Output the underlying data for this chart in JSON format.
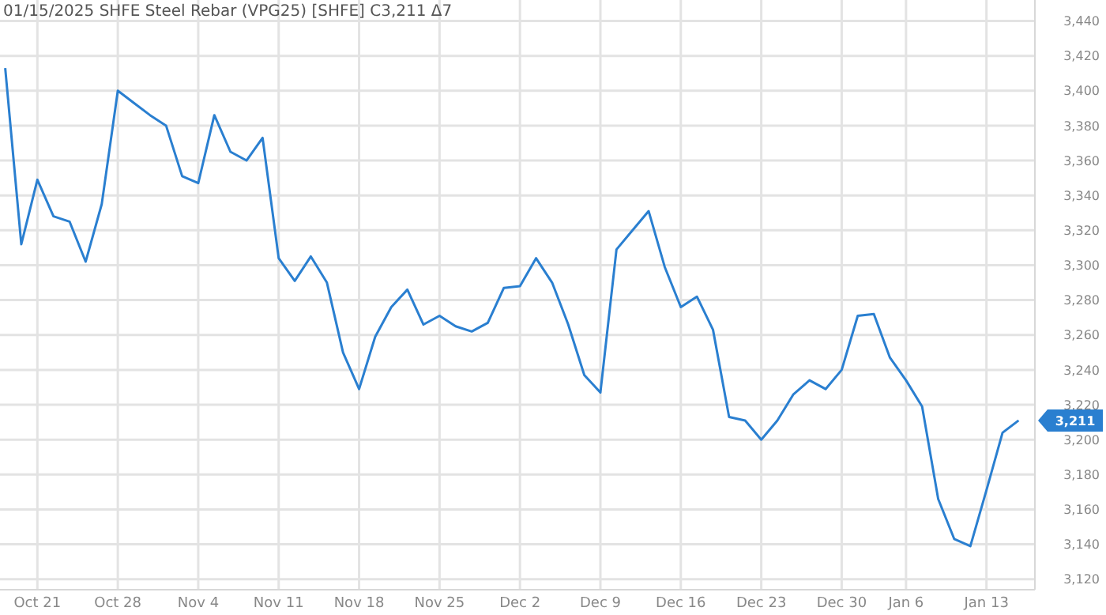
{
  "chart_data": {
    "type": "line",
    "title": "01/15/2025 SHFE Steel Rebar (VPG25) [SHFE] C3,211 Δ7",
    "categories": [
      null,
      null,
      "Oct 21",
      null,
      null,
      null,
      null,
      "Oct 28",
      null,
      null,
      null,
      null,
      "Nov 4",
      null,
      null,
      null,
      null,
      "Nov 11",
      null,
      null,
      null,
      null,
      "Nov 18",
      null,
      null,
      null,
      null,
      "Nov 25",
      null,
      null,
      null,
      null,
      "Dec 2",
      null,
      null,
      null,
      null,
      "Dec 9",
      null,
      null,
      null,
      null,
      "Dec 16",
      null,
      null,
      null,
      null,
      "Dec 23",
      null,
      null,
      null,
      null,
      "Dec 30",
      null,
      null,
      null,
      "Jan 6",
      null,
      null,
      null,
      null,
      "Jan 13",
      null,
      null
    ],
    "series": [
      {
        "color": "#2a7fd0",
        "values": [
          3413,
          3312,
          3349,
          3328,
          3325,
          3302,
          3335,
          3400,
          3393,
          3386,
          3380,
          3351,
          3347,
          3386,
          3365,
          3360,
          3373,
          3304,
          3291,
          3305,
          3290,
          3250,
          3229,
          3259,
          3276,
          3286,
          3266,
          3271,
          3265,
          3262,
          3267,
          3287,
          3288,
          3304,
          3290,
          3266,
          3237,
          3227,
          3309,
          3320,
          3331,
          3299,
          3276,
          3282,
          3263,
          3213,
          3211,
          3200,
          3211,
          3226,
          3234,
          3229,
          3240,
          3271,
          3272,
          3247,
          3234,
          3219,
          3166,
          3143,
          3139,
          3171,
          3204,
          3211
        ]
      }
    ],
    "ylim": [
      3114,
      3452
    ],
    "yticks": [
      {
        "value": 3120,
        "label": "3,120"
      },
      {
        "value": 3140,
        "label": "3,140"
      },
      {
        "value": 3160,
        "label": "3,160"
      },
      {
        "value": 3180,
        "label": "3,180"
      },
      {
        "value": 3200,
        "label": "3,200"
      },
      {
        "value": 3220,
        "label": "3,220"
      },
      {
        "value": 3240,
        "label": "3,240"
      },
      {
        "value": 3260,
        "label": "3,260"
      },
      {
        "value": 3280,
        "label": "3,280"
      },
      {
        "value": 3300,
        "label": "3,300"
      },
      {
        "value": 3320,
        "label": "3,320"
      },
      {
        "value": 3340,
        "label": "3,340"
      },
      {
        "value": 3360,
        "label": "3,360"
      },
      {
        "value": 3380,
        "label": "3,380"
      },
      {
        "value": 3400,
        "label": "3,400"
      },
      {
        "value": 3420,
        "label": "3,420"
      },
      {
        "value": 3440,
        "label": "3,440"
      }
    ],
    "annotations": [
      "3,211"
    ],
    "grid": true,
    "marker": "none",
    "line_style": "solid"
  }
}
